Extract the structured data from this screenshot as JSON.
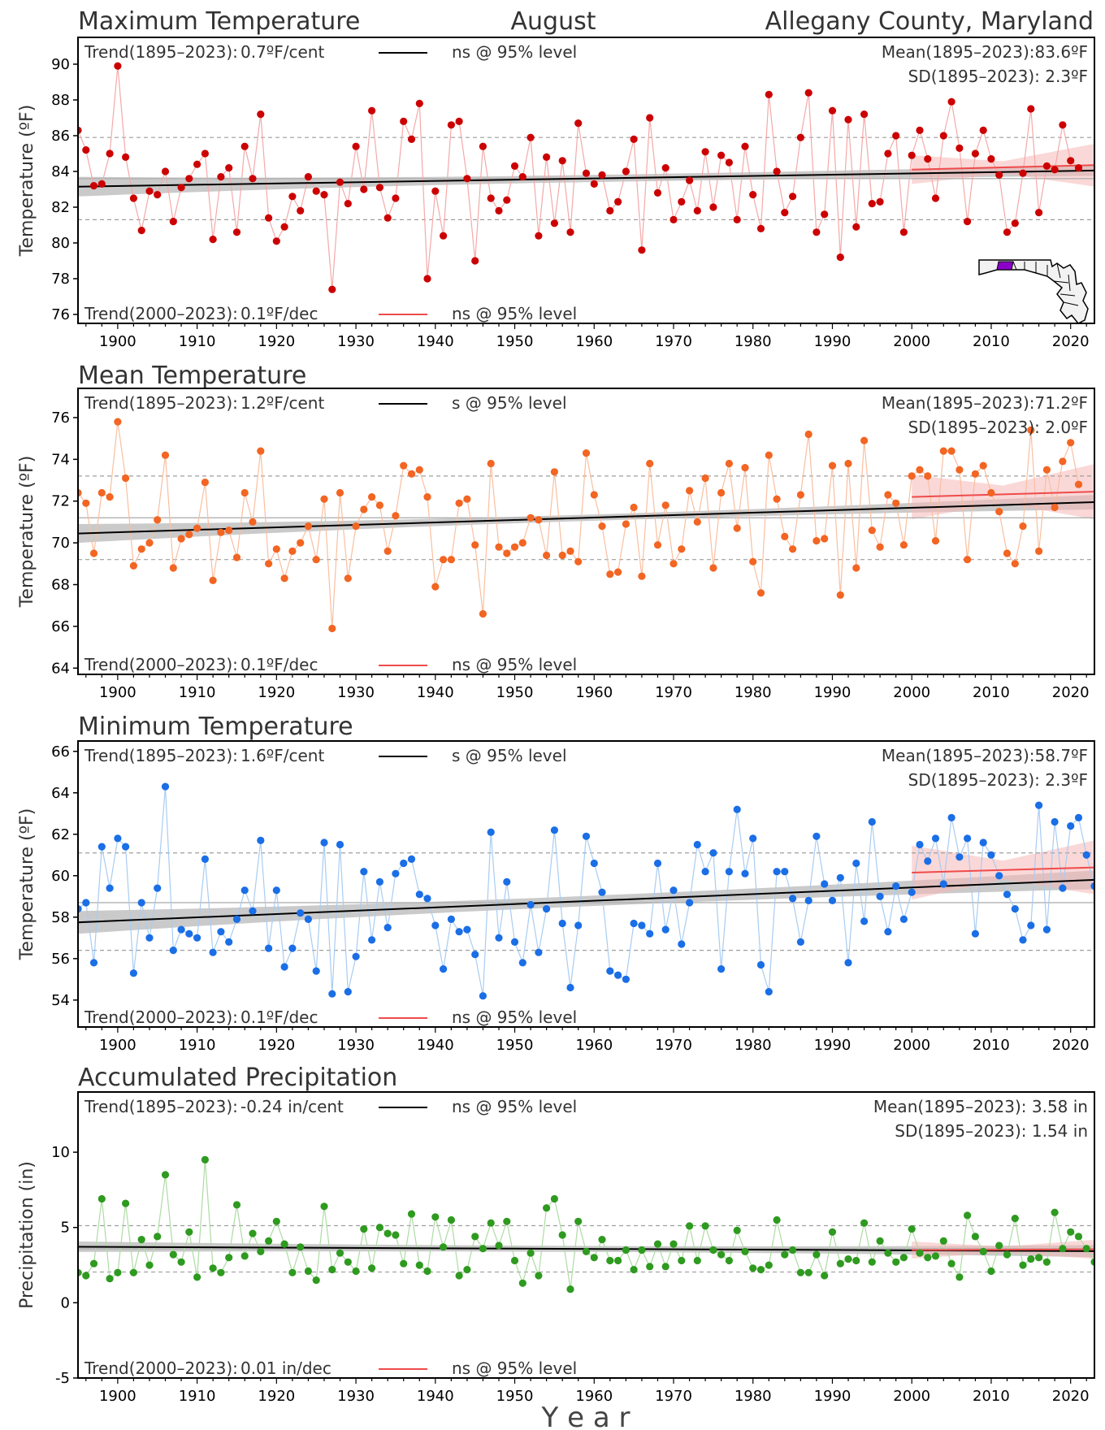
{
  "header": {
    "left_title": "Maximum Temperature",
    "center_title": "August",
    "right_title": "Allegany County, Maryland"
  },
  "xlabel": "Y e a r",
  "colors": {
    "trend_line": "#000000",
    "recent_trend": "#ef4b4b",
    "recent_band": "#f6b8b8",
    "long_band": "#bdbdbd",
    "ref_dash": "#9e9e9e"
  },
  "chart_data": [
    {
      "type": "scatter",
      "title": "Maximum Temperature",
      "ylabel": "Temperature (ºF)",
      "xlim": [
        1895,
        2023
      ],
      "ylim": [
        75.5,
        91.5
      ],
      "yticks": [
        76,
        78,
        80,
        82,
        84,
        86,
        88,
        90
      ],
      "xticks": [
        1900,
        1910,
        1920,
        1930,
        1940,
        1950,
        1960,
        1970,
        1980,
        1990,
        2000,
        2010,
        2020
      ],
      "grid": false,
      "point_color": "#cc0000",
      "line_color": "#f4a9a9",
      "series": [
        {
          "x_start": 1895,
          "values": [
            86.3,
            85.2,
            83.2,
            83.3,
            85.0,
            89.9,
            84.8,
            82.5,
            80.7,
            82.9,
            82.7,
            84.0,
            81.2,
            83.1,
            83.6,
            84.4,
            85.0,
            80.2,
            83.7,
            84.2,
            80.6,
            85.4,
            83.6,
            87.2,
            81.4,
            80.1,
            80.9,
            82.6,
            81.8,
            83.7,
            82.9,
            82.7,
            77.4,
            83.4,
            82.2,
            85.4,
            83.0,
            87.4,
            83.1,
            81.4,
            82.5,
            86.8,
            85.8,
            87.8,
            78.0,
            82.9,
            80.4,
            86.6,
            86.8,
            83.6,
            79.0,
            85.4,
            82.5,
            81.8,
            82.4,
            84.3,
            83.7,
            85.9,
            80.4,
            84.8,
            81.1,
            84.6,
            80.6,
            86.7,
            83.9,
            83.3,
            83.8,
            81.8,
            82.3,
            84.0,
            85.8,
            79.6,
            87.0,
            82.8,
            84.2,
            81.3,
            82.3,
            83.5,
            81.8,
            85.1,
            82.0,
            84.9,
            84.5,
            81.3,
            85.4,
            82.7,
            80.8,
            88.3,
            84.0,
            81.7,
            82.6,
            85.9,
            88.4,
            80.6,
            81.6,
            87.4,
            79.2,
            86.9,
            80.9,
            87.2,
            82.2,
            82.3,
            85.0,
            86.0,
            80.6,
            84.9,
            86.3,
            84.7,
            82.5,
            86.0,
            87.9,
            85.3,
            81.2,
            85.0,
            86.3,
            84.7,
            83.8,
            80.6,
            81.1,
            83.9,
            87.5,
            81.7,
            84.3,
            84.1,
            86.6,
            84.6,
            84.2
          ]
        }
      ],
      "trend_long": {
        "label": "Trend(1895–2023):",
        "value": "0.7ºF/cent",
        "signif": "ns @ 95% level",
        "y_start": 83.15,
        "y_end": 84.05,
        "band_start": 0.55,
        "band_end": 0.3,
        "band_mid": 0.2
      },
      "trend_recent": {
        "label": "Trend(2000–2023):",
        "value": "0.1ºF/dec",
        "signif": "ns @ 95% level",
        "x_start": 2000,
        "y_start": 84.1,
        "y_end": 84.35,
        "band_start": 0.7,
        "band_end": 1.3
      },
      "mean": {
        "text": "Mean(1895–2023):83.6ºF",
        "value": 83.6
      },
      "sd": {
        "text": "SD(1895–2023): 2.3ºF",
        "upper": 85.9,
        "lower": 81.3
      },
      "map_icon": "maryland-county-map-icon"
    },
    {
      "type": "scatter",
      "title": "Mean Temperature",
      "ylabel": "Temperature (ºF)",
      "xlim": [
        1895,
        2023
      ],
      "ylim": [
        63.7,
        77.4
      ],
      "yticks": [
        64,
        66,
        68,
        70,
        72,
        74,
        76
      ],
      "xticks": [
        1900,
        1910,
        1920,
        1930,
        1940,
        1950,
        1960,
        1970,
        1980,
        1990,
        2000,
        2010,
        2020
      ],
      "grid": false,
      "point_color": "#f26522",
      "line_color": "#f9bfa0",
      "series": [
        {
          "x_start": 1895,
          "values": [
            72.4,
            71.9,
            69.5,
            72.4,
            72.2,
            75.8,
            73.1,
            68.9,
            69.7,
            70.0,
            71.1,
            74.2,
            68.8,
            70.2,
            70.4,
            70.7,
            72.9,
            68.2,
            70.5,
            70.6,
            69.3,
            72.4,
            71.0,
            74.4,
            69.0,
            69.7,
            68.3,
            69.6,
            70.0,
            70.8,
            69.2,
            72.1,
            65.9,
            72.4,
            68.3,
            70.8,
            71.6,
            72.2,
            71.8,
            69.6,
            71.3,
            73.7,
            73.3,
            73.5,
            72.2,
            67.9,
            69.2,
            69.2,
            71.9,
            72.1,
            69.9,
            66.6,
            73.8,
            69.8,
            69.5,
            69.8,
            70.0,
            71.2,
            71.1,
            69.4,
            73.4,
            69.4,
            69.6,
            69.1,
            74.3,
            72.3,
            70.8,
            68.5,
            68.6,
            70.9,
            71.7,
            68.4,
            73.8,
            69.9,
            71.8,
            69.0,
            69.7,
            72.5,
            71.0,
            73.1,
            68.8,
            72.4,
            73.8,
            70.7,
            73.6,
            69.1,
            67.6,
            74.2,
            72.1,
            70.3,
            69.7,
            72.3,
            75.2,
            70.1,
            70.2,
            73.7,
            67.5,
            73.8,
            68.8,
            74.9,
            70.6,
            69.8,
            72.3,
            71.9,
            69.9,
            73.2,
            73.5,
            73.2,
            70.1,
            74.4,
            74.4,
            73.5,
            69.2,
            73.3,
            73.7,
            72.4,
            71.5,
            69.5,
            69.0,
            70.8,
            75.4,
            69.6,
            73.5,
            71.7,
            73.9,
            74.8,
            72.8
          ]
        }
      ],
      "trend_long": {
        "label": "Trend(1895–2023):",
        "value": "1.2ºF/cent",
        "signif": "s @ 95% level",
        "y_start": 70.45,
        "y_end": 71.95,
        "band_start": 0.45,
        "band_end": 0.35,
        "band_mid": 0.15
      },
      "trend_recent": {
        "label": "Trend(2000–2023):",
        "value": "0.1ºF/dec",
        "signif": "ns @ 95% level",
        "x_start": 2000,
        "y_start": 72.2,
        "y_end": 72.45,
        "band_start": 1.0,
        "band_end": 1.4
      },
      "mean": {
        "text": "Mean(1895–2023):71.2ºF",
        "value": 71.2
      },
      "sd": {
        "text": "SD(1895–2023): 2.0ºF",
        "upper": 73.2,
        "lower": 69.2
      }
    },
    {
      "type": "scatter",
      "title": "Minimum Temperature",
      "ylabel": "Temperature (ºF)",
      "xlim": [
        1895,
        2023
      ],
      "ylim": [
        52.7,
        66.5
      ],
      "yticks": [
        54,
        56,
        58,
        60,
        62,
        64,
        66
      ],
      "xticks": [
        1900,
        1910,
        1920,
        1930,
        1940,
        1950,
        1960,
        1970,
        1980,
        1990,
        2000,
        2010,
        2020
      ],
      "grid": false,
      "point_color": "#1a6ee6",
      "line_color": "#a9ccf2",
      "series": [
        {
          "x_start": 1895,
          "values": [
            58.4,
            58.7,
            55.8,
            61.4,
            59.4,
            61.8,
            61.4,
            55.3,
            58.7,
            57.0,
            59.4,
            64.3,
            56.4,
            57.4,
            57.2,
            57.0,
            60.8,
            56.3,
            57.3,
            56.8,
            57.9,
            59.3,
            58.3,
            61.7,
            56.5,
            59.3,
            55.6,
            56.5,
            58.2,
            57.9,
            55.4,
            61.6,
            54.3,
            61.5,
            54.4,
            56.1,
            60.2,
            56.9,
            59.7,
            57.5,
            60.1,
            60.6,
            60.8,
            59.1,
            58.9,
            57.6,
            55.5,
            57.9,
            57.3,
            57.4,
            56.2,
            54.2,
            62.1,
            57.0,
            59.7,
            56.8,
            55.8,
            58.6,
            56.3,
            58.4,
            62.2,
            57.7,
            54.6,
            57.6,
            61.9,
            60.6,
            59.2,
            55.4,
            55.2,
            55.0,
            57.7,
            57.6,
            57.2,
            60.6,
            57.4,
            59.3,
            56.7,
            58.7,
            61.5,
            60.2,
            61.1,
            55.5,
            60.2,
            63.2,
            60.1,
            61.8,
            55.7,
            54.4,
            60.2,
            60.2,
            58.9,
            56.8,
            58.8,
            61.9,
            59.6,
            58.8,
            59.9,
            55.8,
            60.6,
            57.8,
            62.6,
            59.0,
            57.3,
            59.5,
            57.9,
            59.2,
            61.5,
            60.7,
            61.8,
            59.6,
            62.8,
            60.9,
            61.8,
            57.2,
            61.6,
            61.0,
            60.0,
            59.1,
            58.4,
            56.9,
            57.6,
            63.4,
            57.4,
            62.6,
            59.4,
            62.4,
            62.8,
            61.0,
            59.5
          ]
        }
      ],
      "trend_long": {
        "label": "Trend(1895–2023):",
        "value": "1.6ºF/cent",
        "signif": "s @ 95% level",
        "y_start": 57.75,
        "y_end": 59.8,
        "band_start": 0.55,
        "band_end": 0.45,
        "band_mid": 0.25
      },
      "trend_recent": {
        "label": "Trend(2000–2023):",
        "value": "0.1ºF/dec",
        "signif": "ns @ 95% level",
        "x_start": 2000,
        "y_start": 60.15,
        "y_end": 60.4,
        "band_start": 1.3,
        "band_end": 1.3
      },
      "mean": {
        "text": "Mean(1895–2023):58.7ºF",
        "value": 58.7
      },
      "sd": {
        "text": "SD(1895–2023): 2.3ºF",
        "upper": 61.1,
        "lower": 56.4
      }
    },
    {
      "type": "scatter",
      "title": "Accumulated Precipitation",
      "ylabel": "Precipitation (in)",
      "xlim": [
        1895,
        2023
      ],
      "ylim": [
        -5,
        14
      ],
      "yticks": [
        -5,
        0,
        5,
        10
      ],
      "xticks": [
        1900,
        1910,
        1920,
        1930,
        1940,
        1950,
        1960,
        1970,
        1980,
        1990,
        2000,
        2010,
        2020
      ],
      "grid": false,
      "point_color": "#2e9a1f",
      "line_color": "#aedba4",
      "series": [
        {
          "x_start": 1895,
          "values": [
            2.0,
            1.8,
            2.6,
            6.9,
            1.6,
            2.0,
            6.6,
            2.0,
            4.2,
            2.5,
            4.4,
            8.5,
            3.2,
            2.7,
            4.7,
            1.7,
            9.5,
            2.3,
            2.0,
            3.0,
            6.5,
            3.1,
            4.6,
            3.4,
            4.1,
            5.4,
            3.9,
            2.0,
            3.7,
            2.1,
            1.5,
            6.4,
            2.2,
            3.3,
            2.7,
            2.1,
            4.9,
            2.3,
            5.0,
            4.6,
            4.5,
            2.6,
            5.9,
            2.5,
            2.1,
            5.7,
            3.7,
            5.5,
            1.8,
            2.2,
            4.4,
            3.6,
            5.3,
            3.8,
            5.4,
            2.8,
            1.3,
            3.3,
            1.8,
            6.3,
            6.9,
            4.5,
            0.9,
            5.4,
            3.4,
            3.0,
            4.2,
            2.8,
            2.8,
            3.5,
            2.2,
            3.5,
            2.4,
            3.9,
            2.4,
            3.9,
            2.8,
            5.1,
            2.8,
            5.1,
            3.5,
            3.2,
            2.8,
            4.8,
            3.4,
            2.3,
            2.2,
            2.5,
            5.5,
            3.2,
            3.5,
            2.0,
            2.0,
            3.2,
            1.8,
            4.7,
            2.6,
            2.9,
            2.8,
            5.3,
            2.7,
            4.1,
            3.3,
            2.7,
            3.0,
            4.9,
            3.3,
            3.0,
            3.1,
            4.1,
            2.6,
            1.7,
            5.8,
            4.4,
            3.4,
            2.1,
            3.8,
            3.2,
            5.6,
            2.5,
            2.9,
            3.0,
            2.7,
            6.0,
            3.6,
            4.7,
            4.4,
            3.6,
            2.7
          ]
        }
      ],
      "trend_long": {
        "label": "Trend(1895–2023):",
        "value": "-0.24 in/cent",
        "signif": "ns @ 95% level",
        "y_start": 3.72,
        "y_end": 3.43,
        "band_start": 0.35,
        "band_end": 0.4,
        "band_mid": 0.2
      },
      "trend_recent": {
        "label": "Trend(2000–2023):",
        "value": "0.01 in/dec",
        "signif": "ns @ 95% level",
        "x_start": 2000,
        "y_start": 3.5,
        "y_end": 3.55,
        "band_start": 0.55,
        "band_end": 0.65
      },
      "mean": {
        "text": "Mean(1895–2023): 3.58 in",
        "value": 3.58
      },
      "sd": {
        "text": "SD(1895–2023): 1.54 in",
        "upper": 5.12,
        "lower": 2.04
      }
    }
  ]
}
